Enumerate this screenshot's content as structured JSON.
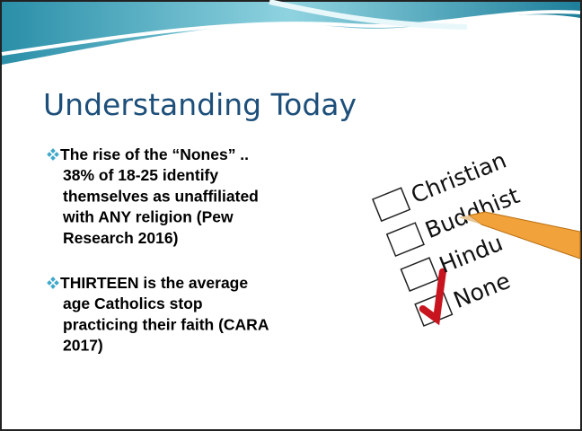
{
  "slide": {
    "title": "Understanding Today",
    "bullets": [
      {
        "lines": [
          "The rise of the “Nones”  ..",
          "38% of  18-25 identify",
          "themselves as unaffiliated",
          "with ANY religion (Pew",
          "Research 2016)"
        ]
      },
      {
        "lines": [
          "THIRTEEN is the average",
          "age Catholics stop",
          "practicing their faith (CARA",
          "2017)"
        ]
      }
    ],
    "image_labels": [
      "Christian",
      "Buddhist",
      "Hindu",
      "None"
    ]
  }
}
